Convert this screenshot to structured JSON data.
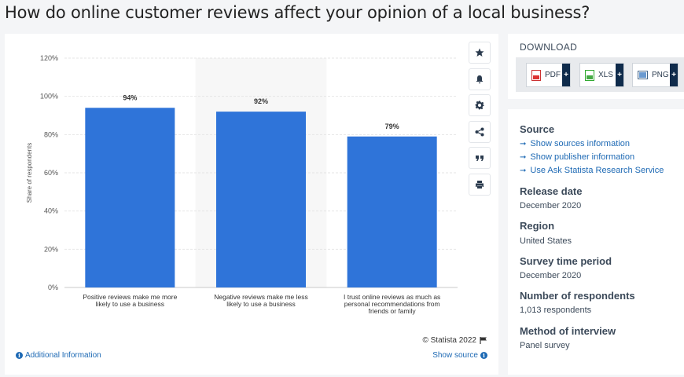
{
  "page": {
    "title": "How do online customer reviews affect your opinion of a local business?"
  },
  "toolbar": {
    "icons": [
      "star-icon",
      "bell-icon",
      "gear-icon",
      "share-icon",
      "quote-icon",
      "print-icon"
    ]
  },
  "chart_data": {
    "type": "bar",
    "categories": [
      [
        "Positive reviews make me more",
        "likely to use a business"
      ],
      [
        "Negative reviews make me less",
        "likely to use a business"
      ],
      [
        "I trust online reviews as much as",
        "personal recommendations from",
        "friends or family"
      ]
    ],
    "values": [
      94,
      92,
      79
    ],
    "value_labels": [
      "94%",
      "92%",
      "79%"
    ],
    "ylabel": "Share of respondents",
    "ylim": [
      0,
      120
    ],
    "yticks": [
      "0%",
      "20%",
      "40%",
      "60%",
      "80%",
      "100%",
      "120%"
    ],
    "bar_color": "#2f74d9",
    "highlight_category_index": 1,
    "grid": true
  },
  "footer": {
    "credit": "© Statista 2022",
    "additional_info": "Additional Information",
    "show_source": "Show source"
  },
  "download": {
    "label": "DOWNLOAD",
    "buttons": [
      {
        "label": "PDF",
        "plus": "+"
      },
      {
        "label": "XLS",
        "plus": "+"
      },
      {
        "label": "PNG",
        "plus": "+"
      }
    ]
  },
  "meta": {
    "source_h": "Source",
    "links": [
      "Show sources information",
      "Show publisher information",
      "Use Ask Statista Research Service"
    ],
    "release_h": "Release date",
    "release_v": "December 2020",
    "region_h": "Region",
    "region_v": "United States",
    "survey_h": "Survey time period",
    "survey_v": "December 2020",
    "respondents_h": "Number of respondents",
    "respondents_v": "1,013 respondents",
    "method_h": "Method of interview",
    "method_v": "Panel survey"
  }
}
